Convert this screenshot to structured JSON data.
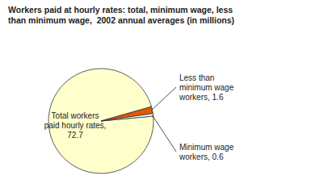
{
  "chart_data": {
    "type": "pie",
    "title": "Workers paid at hourly rates: total, minimum wage, less\nthan minimum wage,  2002 annual averages (in millions)",
    "categories": [
      "Total workers\npaid hourly rates,\n72.7",
      "Less than\nminimum wage\nworkers, 1.6",
      "Minimum wage\nworkers, 0.6"
    ],
    "values": [
      72.7,
      1.6,
      0.6
    ],
    "colors": [
      "#ffffcc",
      "#e05a00",
      "#ffffff"
    ]
  }
}
